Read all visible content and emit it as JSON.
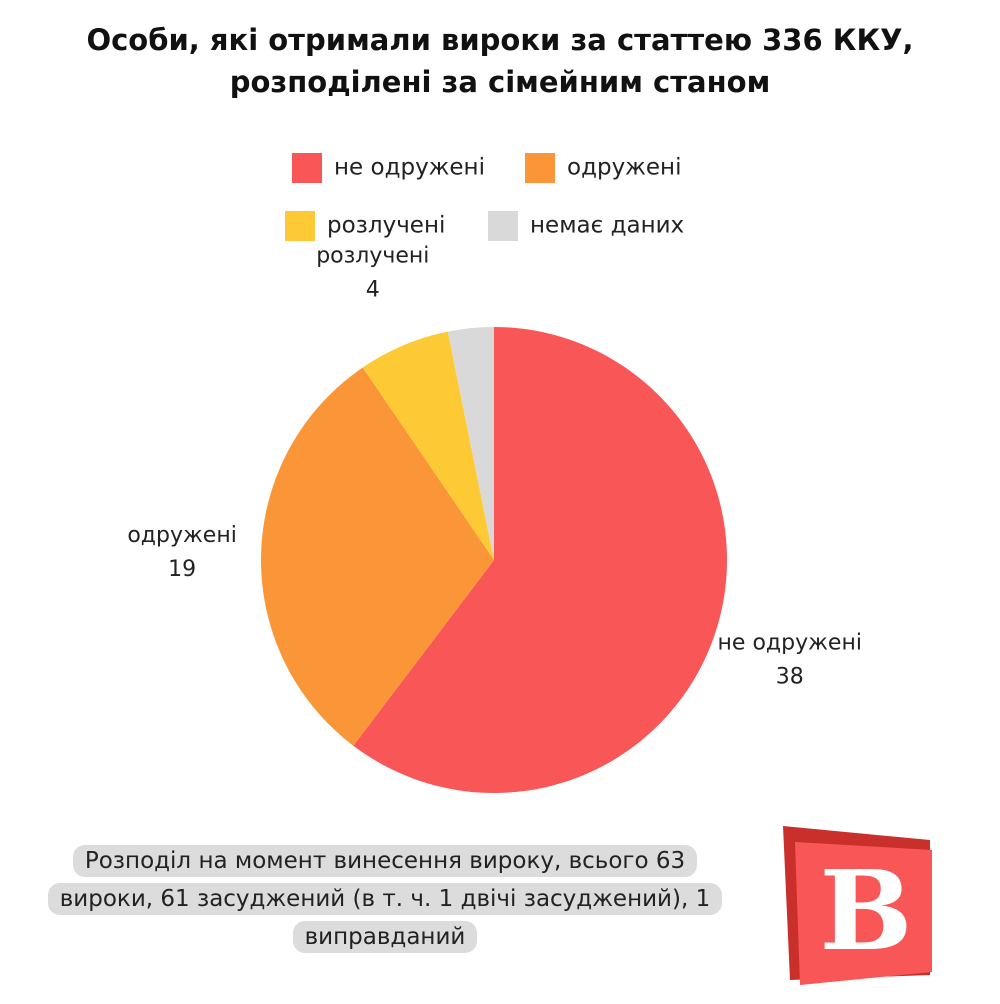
{
  "chart_data": {
    "type": "pie",
    "title": "Особи, які отримали вироки за статтею 336 ККУ, розподілені за сімейним станом",
    "categories": [
      "не одружені",
      "одружені",
      "розлучені",
      "немає даних"
    ],
    "values": [
      38,
      19,
      4,
      2
    ],
    "data_labels": [
      true,
      true,
      true,
      false
    ],
    "colors": [
      "#f95757",
      "#fb9638",
      "#fdca35",
      "#d9d9d9"
    ],
    "note": "Розподіл на момент винесення вироку, всього 63 вироки, 61 засуджений (в т. ч. 1 двічі засуджений), 1 виправданий",
    "logo": "B"
  }
}
